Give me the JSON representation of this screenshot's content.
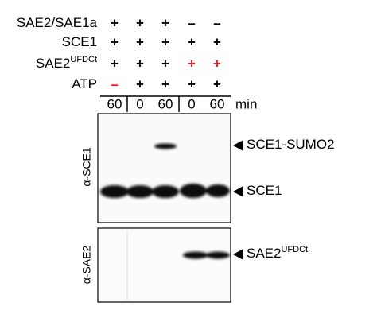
{
  "conditions": [
    {
      "label": "SAE2/SAE1a",
      "cells": [
        {
          "text": "+",
          "color": "#000000"
        },
        {
          "text": "+",
          "color": "#000000"
        },
        {
          "text": "+",
          "color": "#000000"
        },
        {
          "text": "–",
          "color": "#000000"
        },
        {
          "text": "–",
          "color": "#000000"
        }
      ]
    },
    {
      "label": "SCE1",
      "cells": [
        {
          "text": "+",
          "color": "#000000"
        },
        {
          "text": "+",
          "color": "#000000"
        },
        {
          "text": "+",
          "color": "#000000"
        },
        {
          "text": "+",
          "color": "#000000"
        },
        {
          "text": "+",
          "color": "#000000"
        }
      ]
    },
    {
      "label": "SAE2",
      "sup": "UFDCt",
      "cells": [
        {
          "text": "+",
          "color": "#000000"
        },
        {
          "text": "+",
          "color": "#000000"
        },
        {
          "text": "+",
          "color": "#000000"
        },
        {
          "text": "+",
          "color": "#e8191f"
        },
        {
          "text": "+",
          "color": "#e8191f"
        }
      ]
    },
    {
      "label": "ATP",
      "cells": [
        {
          "text": "–",
          "color": "#e8191f"
        },
        {
          "text": "+",
          "color": "#000000"
        },
        {
          "text": "+",
          "color": "#000000"
        },
        {
          "text": "+",
          "color": "#000000"
        },
        {
          "text": "+",
          "color": "#000000"
        }
      ]
    }
  ],
  "time": {
    "values": [
      "60",
      "0",
      "60",
      "0",
      "60"
    ],
    "unit": "min"
  },
  "blots": [
    {
      "antibody": "α-SCE1",
      "bands": [
        {
          "label": "SCE1-SUMO2"
        },
        {
          "label": "SCE1"
        }
      ]
    },
    {
      "antibody": "α-SAE2",
      "bands": [
        {
          "label": "SAE2",
          "sup": "UFDCt"
        }
      ]
    }
  ]
}
